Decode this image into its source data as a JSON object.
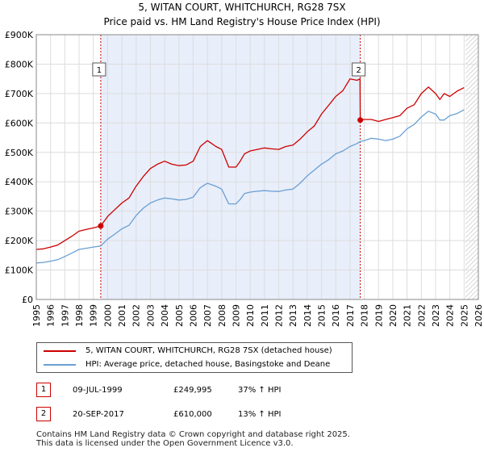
{
  "header": {
    "title": "5, WITAN COURT, WHITCHURCH, RG28 7SX",
    "subtitle": "Price paid vs. HM Land Registry's House Price Index (HPI)"
  },
  "colors": {
    "property": "#cc0000",
    "hpi": "#6a9fd4",
    "shade": "#e8eefa",
    "hatch": "#bbbbbb",
    "grid": "#dddddd",
    "marker_line": "#cc0000"
  },
  "chart_data": {
    "type": "line",
    "title": "5, WITAN COURT, WHITCHURCH, RG28 7SX",
    "subtitle": "Price paid vs. HM Land Registry's House Price Index (HPI)",
    "xlim": [
      1995,
      2026
    ],
    "ylim": [
      0,
      900000
    ],
    "x_ticks": [
      "1995",
      "1996",
      "1997",
      "1998",
      "1999",
      "2000",
      "2001",
      "2002",
      "2003",
      "2004",
      "2005",
      "2006",
      "2007",
      "2008",
      "2009",
      "2010",
      "2011",
      "2012",
      "2013",
      "2014",
      "2015",
      "2016",
      "2017",
      "2018",
      "2019",
      "2020",
      "2021",
      "2022",
      "2023",
      "2024",
      "2025",
      "2026"
    ],
    "y_ticks": [
      {
        "value": 0,
        "label": "£0"
      },
      {
        "value": 100000,
        "label": "£100K"
      },
      {
        "value": 200000,
        "label": "£200K"
      },
      {
        "value": 300000,
        "label": "£300K"
      },
      {
        "value": 400000,
        "label": "£400K"
      },
      {
        "value": 500000,
        "label": "£500K"
      },
      {
        "value": 600000,
        "label": "£600K"
      },
      {
        "value": 700000,
        "label": "£700K"
      },
      {
        "value": 800000,
        "label": "£800K"
      },
      {
        "value": 900000,
        "label": "£900K"
      }
    ],
    "shaded_range": [
      1999.52,
      2017.72
    ],
    "hatched_from": 2025.1,
    "series": [
      {
        "name": "5, WITAN COURT, WHITCHURCH, RG28 7SX (detached house)",
        "key": "property",
        "x": [
          1995.0,
          1995.5,
          1996.0,
          1996.5,
          1997.0,
          1997.5,
          1998.0,
          1998.5,
          1999.0,
          1999.52,
          2000.0,
          2000.5,
          2001.0,
          2001.5,
          2002.0,
          2002.5,
          2003.0,
          2003.5,
          2004.0,
          2004.5,
          2005.0,
          2005.5,
          2006.0,
          2006.5,
          2007.0,
          2007.3,
          2007.6,
          2008.0,
          2008.5,
          2009.0,
          2009.3,
          2009.6,
          2010.0,
          2010.5,
          2011.0,
          2011.5,
          2012.0,
          2012.5,
          2013.0,
          2013.5,
          2014.0,
          2014.5,
          2015.0,
          2015.5,
          2016.0,
          2016.5,
          2017.0,
          2017.5,
          2017.7,
          2017.72,
          2018.0,
          2018.5,
          2019.0,
          2019.5,
          2020.0,
          2020.5,
          2021.0,
          2021.5,
          2022.0,
          2022.5,
          2023.0,
          2023.3,
          2023.6,
          2024.0,
          2024.5,
          2025.0
        ],
        "y": [
          170000,
          172000,
          178000,
          185000,
          200000,
          215000,
          232000,
          238000,
          243000,
          249995,
          282000,
          305000,
          328000,
          345000,
          385000,
          418000,
          445000,
          460000,
          470000,
          460000,
          455000,
          457000,
          470000,
          520000,
          540000,
          530000,
          520000,
          510000,
          450000,
          450000,
          470000,
          495000,
          505000,
          510000,
          515000,
          512000,
          510000,
          520000,
          525000,
          545000,
          570000,
          590000,
          630000,
          660000,
          690000,
          710000,
          750000,
          745000,
          750000,
          610000,
          612000,
          612000,
          605000,
          612000,
          618000,
          625000,
          650000,
          662000,
          700000,
          722000,
          700000,
          680000,
          700000,
          690000,
          708000,
          720000
        ]
      },
      {
        "name": "HPI: Average price, detached house, Basingstoke and Deane",
        "key": "hpi",
        "x": [
          1995.0,
          1995.5,
          1996.0,
          1996.5,
          1997.0,
          1997.5,
          1998.0,
          1998.5,
          1999.0,
          1999.52,
          2000.0,
          2000.5,
          2001.0,
          2001.5,
          2002.0,
          2002.5,
          2003.0,
          2003.5,
          2004.0,
          2004.5,
          2005.0,
          2005.5,
          2006.0,
          2006.5,
          2007.0,
          2007.3,
          2007.6,
          2008.0,
          2008.5,
          2009.0,
          2009.3,
          2009.6,
          2010.0,
          2010.5,
          2011.0,
          2011.5,
          2012.0,
          2012.5,
          2013.0,
          2013.5,
          2014.0,
          2014.5,
          2015.0,
          2015.5,
          2016.0,
          2016.5,
          2017.0,
          2017.5,
          2017.72,
          2018.0,
          2018.5,
          2019.0,
          2019.5,
          2020.0,
          2020.5,
          2021.0,
          2021.5,
          2022.0,
          2022.5,
          2023.0,
          2023.3,
          2023.6,
          2024.0,
          2024.5,
          2025.0
        ],
        "y": [
          124000,
          126000,
          130000,
          135000,
          146000,
          158000,
          170000,
          174000,
          178000,
          182000,
          205000,
          222000,
          240000,
          252000,
          285000,
          310000,
          328000,
          338000,
          345000,
          342000,
          338000,
          340000,
          348000,
          380000,
          395000,
          390000,
          385000,
          375000,
          325000,
          325000,
          340000,
          360000,
          365000,
          368000,
          370000,
          368000,
          367000,
          372000,
          375000,
          395000,
          420000,
          440000,
          460000,
          475000,
          495000,
          505000,
          520000,
          530000,
          537000,
          540000,
          548000,
          545000,
          540000,
          545000,
          555000,
          580000,
          595000,
          620000,
          640000,
          630000,
          610000,
          610000,
          625000,
          632000,
          645000
        ]
      }
    ],
    "annotations": [
      {
        "id": "1",
        "x": 1999.52,
        "y": 249995
      },
      {
        "id": "2",
        "x": 2017.72,
        "y": 610000
      }
    ]
  },
  "legend": {
    "property_label": "5, WITAN COURT, WHITCHURCH, RG28 7SX (detached house)",
    "hpi_label": "HPI: Average price, detached house, Basingstoke and Deane"
  },
  "transactions": [
    {
      "id": "1",
      "date": "09-JUL-1999",
      "price": "£249,995",
      "hpi": "37% ↑ HPI"
    },
    {
      "id": "2",
      "date": "20-SEP-2017",
      "price": "£610,000",
      "hpi": "13% ↑ HPI"
    }
  ],
  "footer": {
    "line1": "Contains HM Land Registry data © Crown copyright and database right 2025.",
    "line2": "This data is licensed under the Open Government Licence v3.0."
  }
}
